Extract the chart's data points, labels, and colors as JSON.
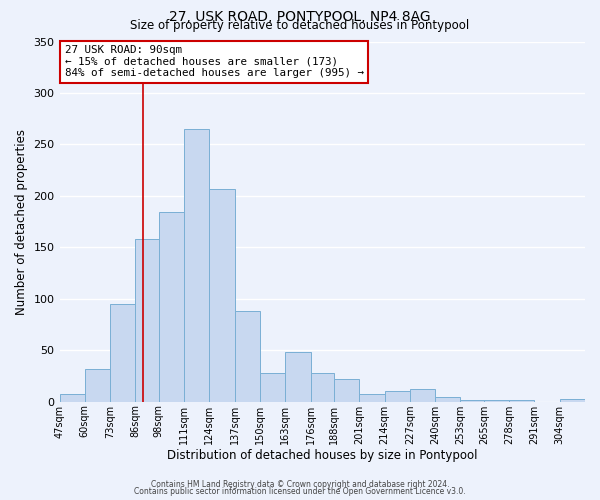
{
  "title": "27, USK ROAD, PONTYPOOL, NP4 8AG",
  "subtitle": "Size of property relative to detached houses in Pontypool",
  "xlabel": "Distribution of detached houses by size in Pontypool",
  "ylabel": "Number of detached properties",
  "footer_line1": "Contains HM Land Registry data © Crown copyright and database right 2024.",
  "footer_line2": "Contains public sector information licensed under the Open Government Licence v3.0.",
  "bar_labels": [
    "47sqm",
    "60sqm",
    "73sqm",
    "86sqm",
    "98sqm",
    "111sqm",
    "124sqm",
    "137sqm",
    "150sqm",
    "163sqm",
    "176sqm",
    "188sqm",
    "201sqm",
    "214sqm",
    "227sqm",
    "240sqm",
    "253sqm",
    "265sqm",
    "278sqm",
    "291sqm",
    "304sqm"
  ],
  "bar_heights": [
    7,
    32,
    95,
    158,
    184,
    265,
    207,
    88,
    28,
    48,
    28,
    22,
    7,
    10,
    12,
    5,
    2,
    2,
    2,
    0,
    3
  ],
  "bar_color": "#c8d8f0",
  "bar_edge_color": "#7aafd4",
  "ylim": [
    0,
    350
  ],
  "yticks": [
    0,
    50,
    100,
    150,
    200,
    250,
    300,
    350
  ],
  "vline_x": 90,
  "vline_color": "#cc0000",
  "annotation_title": "27 USK ROAD: 90sqm",
  "annotation_line1": "← 15% of detached houses are smaller (173)",
  "annotation_line2": "84% of semi-detached houses are larger (995) →",
  "annotation_box_color": "#ffffff",
  "annotation_box_edge_color": "#cc0000",
  "bg_color": "#edf2fc",
  "grid_color": "#ffffff",
  "bin_edges": [
    47,
    60,
    73,
    86,
    98,
    111,
    124,
    137,
    150,
    163,
    176,
    188,
    201,
    214,
    227,
    240,
    253,
    265,
    278,
    291,
    304,
    317
  ]
}
